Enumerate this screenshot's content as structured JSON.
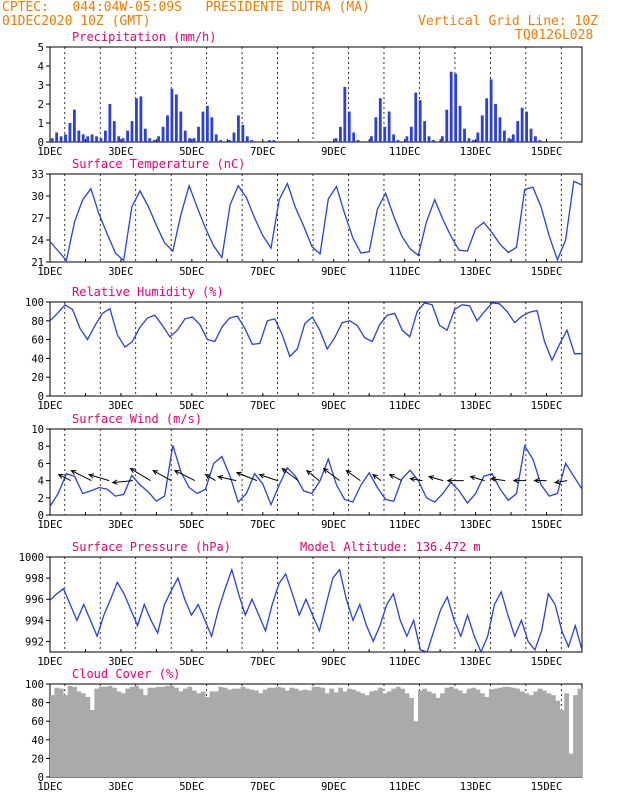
{
  "header": {
    "line1": "CPTEC:   044:04W-05:09S   PRESIDENTE DUTRA (MA)",
    "line2": "01DEC2020 10Z (GMT)",
    "vgrid": "Vertical Grid Line: 10Z",
    "code": "TQ0126L028"
  },
  "colors": {
    "header": "#f07c00",
    "title": "#e8007a",
    "line": "#2a3fe0",
    "cloud": "#aaaaaa",
    "wind_arrow": "#000000"
  },
  "x_axis": {
    "start": "2020-12-01T00:00Z",
    "end": "2020-12-16T00:00Z",
    "vgrid": "10Z",
    "labels": [
      "1DEC",
      "3DEC",
      "5DEC",
      "7DEC",
      "9DEC",
      "11DEC",
      "13DEC",
      "15DEC"
    ]
  },
  "chart_data": [
    {
      "type": "bar",
      "title": "Precipitation (mm/h)",
      "ylim": [
        0,
        5
      ],
      "yticks": [
        0,
        1,
        2,
        3,
        4,
        5
      ],
      "series": [
        {
          "values": [
            [
              0.2,
              0.5,
              0.3,
              0.4,
              1.0,
              1.7,
              0.6,
              0.4
            ],
            [
              0.3,
              0.4,
              0.3,
              0.2,
              0.6,
              2.0,
              1.1,
              0.3
            ],
            [
              0.2,
              0.6,
              1.1,
              2.3,
              2.4,
              0.7,
              0.2,
              0.1
            ],
            [
              0.3,
              0.8,
              1.4,
              2.8,
              2.5,
              1.6,
              0.6,
              0.2
            ],
            [
              0.2,
              0.8,
              1.6,
              1.9,
              1.3,
              0.4,
              0.1,
              0.0
            ],
            [
              0.1,
              0.5,
              1.4,
              0.9,
              0.3,
              0.1,
              0.0,
              0.0
            ],
            [
              0.0,
              0.1,
              0.1,
              0.0,
              0.0,
              0.0,
              0.0,
              0.0
            ],
            [
              0.0,
              0.0,
              0.0,
              0.0,
              0.0,
              0.0,
              0.0,
              0.0
            ],
            [
              0.2,
              0.8,
              2.9,
              1.6,
              0.5,
              0.1,
              0.0,
              0.0
            ],
            [
              0.3,
              1.3,
              2.3,
              0.8,
              1.6,
              0.4,
              0.1,
              0.0
            ],
            [
              0.3,
              0.8,
              2.6,
              2.2,
              1.1,
              0.3,
              0.1,
              0.0
            ],
            [
              0.3,
              1.7,
              3.7,
              3.6,
              1.9,
              0.7,
              0.2,
              0.1
            ],
            [
              0.5,
              1.4,
              2.3,
              3.3,
              2.0,
              1.3,
              0.6,
              0.2
            ],
            [
              0.4,
              1.1,
              1.8,
              1.6,
              0.7,
              0.3,
              0.1,
              0.0
            ],
            [
              0.0,
              0.0,
              0.0,
              0.0,
              0.0,
              0.0,
              0.0,
              0.0
            ]
          ]
        }
      ]
    },
    {
      "type": "line",
      "title": "Surface Temperature (nC)",
      "ylim": [
        21,
        33
      ],
      "yticks": [
        21,
        24,
        27,
        30,
        33
      ],
      "series": [
        {
          "values": [
            23.8,
            22.5,
            21.2,
            26.5,
            29.5,
            31.0,
            27.5,
            24.8,
            22.2,
            21.2,
            28.5,
            30.7,
            28.6,
            26.0,
            23.6,
            22.5,
            27.5,
            31.4,
            28.4,
            25.6,
            23.2,
            21.6,
            28.8,
            31.4,
            29.8,
            27.0,
            24.6,
            22.9,
            29.5,
            31.7,
            28.4,
            25.9,
            23.1,
            22.1,
            29.6,
            31.3,
            27.6,
            24.3,
            22.2,
            22.4,
            28.2,
            30.4,
            27.2,
            24.5,
            22.8,
            21.9,
            26.5,
            29.5,
            26.8,
            24.5,
            22.6,
            22.5,
            25.5,
            26.4,
            25.0,
            23.4,
            22.3,
            23.0,
            30.9,
            31.2,
            28.5,
            24.5,
            21.3,
            24.0,
            32.0,
            31.5
          ]
        }
      ]
    },
    {
      "type": "line",
      "title": "Relative Humidity (%)",
      "ylim": [
        0,
        100
      ],
      "yticks": [
        0,
        20,
        40,
        60,
        80,
        100
      ],
      "series": [
        {
          "values": [
            80,
            88,
            97,
            92,
            72,
            60,
            75,
            88,
            93,
            65,
            52,
            58,
            73,
            83,
            86,
            75,
            63,
            70,
            82,
            84,
            76,
            60,
            58,
            74,
            83,
            85,
            72,
            55,
            56,
            80,
            82,
            65,
            42,
            50,
            77,
            84,
            70,
            50,
            62,
            78,
            80,
            75,
            62,
            58,
            76,
            86,
            88,
            70,
            63,
            90,
            99,
            97,
            75,
            70,
            92,
            97,
            96,
            80,
            90,
            99,
            98,
            90,
            78,
            85,
            89,
            91,
            58,
            38,
            55,
            70,
            45,
            45
          ]
        }
      ]
    },
    {
      "type": "line",
      "title": "Surface Wind (m/s)",
      "ylim": [
        0,
        10
      ],
      "yticks": [
        0,
        2,
        4,
        6,
        8,
        10
      ],
      "series": [
        {
          "values": [
            1.0,
            2.5,
            4.8,
            4.5,
            2.5,
            2.8,
            3.2,
            3.0,
            2.2,
            2.4,
            4.6,
            3.5,
            2.7,
            1.6,
            2.2,
            8.1,
            5.0,
            3.2,
            2.5,
            3.0,
            6.0,
            6.8,
            4.5,
            1.5,
            2.5,
            4.8,
            3.6,
            1.2,
            3.5,
            5.5,
            4.5,
            2.8,
            2.5,
            4.0,
            6.5,
            3.5,
            1.8,
            1.5,
            3.5,
            4.9,
            3.2,
            1.8,
            1.6,
            4.2,
            5.2,
            4.0,
            2.0,
            1.5,
            2.5,
            3.8,
            2.8,
            1.4,
            2.5,
            4.5,
            4.8,
            3.0,
            1.7,
            2.5,
            8.0,
            6.5,
            3.5,
            2.2,
            2.5,
            6.0,
            4.5,
            3.0
          ]
        }
      ],
      "arrows": [
        {
          "x": "2020-12-01T14Z",
          "u": -0.6,
          "v": 0.3
        },
        {
          "x": "2020-12-02T04Z",
          "u": -1.0,
          "v": 0.5
        },
        {
          "x": "2020-12-02T16Z",
          "u": -1.0,
          "v": 0.3
        },
        {
          "x": "2020-12-03T08Z",
          "u": -1.0,
          "v": -0.1
        },
        {
          "x": "2020-12-03T20Z",
          "u": -1.0,
          "v": 0.6
        },
        {
          "x": "2020-12-04T10Z",
          "u": -0.9,
          "v": 0.5
        },
        {
          "x": "2020-12-05T02Z",
          "u": -1.0,
          "v": 0.5
        },
        {
          "x": "2020-12-05T16Z",
          "u": -0.5,
          "v": 0.3
        },
        {
          "x": "2020-12-06T06Z",
          "u": -0.9,
          "v": 0.2
        },
        {
          "x": "2020-12-06T20Z",
          "u": -1.0,
          "v": 0.4
        },
        {
          "x": "2020-12-07T10Z",
          "u": -0.9,
          "v": 0.3
        },
        {
          "x": "2020-12-08T00Z",
          "u": -0.8,
          "v": 0.6
        },
        {
          "x": "2020-12-08T14Z",
          "u": -0.6,
          "v": 0.5
        },
        {
          "x": "2020-12-09T04Z",
          "u": -0.8,
          "v": 0.6
        },
        {
          "x": "2020-12-09T18Z",
          "u": -0.7,
          "v": 0.5
        },
        {
          "x": "2020-12-10T08Z",
          "u": -0.4,
          "v": 0.3
        },
        {
          "x": "2020-12-10T22Z",
          "u": -0.6,
          "v": 0.3
        },
        {
          "x": "2020-12-11T12Z",
          "u": -0.6,
          "v": 0.1
        },
        {
          "x": "2020-12-12T02Z",
          "u": -0.7,
          "v": 0.2
        },
        {
          "x": "2020-12-12T16Z",
          "u": -0.8,
          "v": 0.0
        },
        {
          "x": "2020-12-13T06Z",
          "u": -0.7,
          "v": 0.2
        },
        {
          "x": "2020-12-13T20Z",
          "u": -0.7,
          "v": 0.1
        },
        {
          "x": "2020-12-14T10Z",
          "u": -0.6,
          "v": 0.0
        },
        {
          "x": "2020-12-15T00Z",
          "u": -0.6,
          "v": 0.0
        },
        {
          "x": "2020-12-15T14Z",
          "u": -0.6,
          "v": -0.1
        }
      ]
    },
    {
      "type": "line",
      "title": "Surface Pressure (hPa)",
      "annotation": "Model Altitude: 136.472 m",
      "ylim": [
        991,
        1000
      ],
      "yticks": [
        992,
        994,
        996,
        998,
        1000
      ],
      "series": [
        {
          "values": [
            995.9,
            996.5,
            997.0,
            995.5,
            994.0,
            995.5,
            994.0,
            992.5,
            994.5,
            996.0,
            997.6,
            996.5,
            995.0,
            993.5,
            995.5,
            994.0,
            992.8,
            995.5,
            996.8,
            998.0,
            996.0,
            994.5,
            995.5,
            994.0,
            992.5,
            995.0,
            997.0,
            998.8,
            996.5,
            994.5,
            996.0,
            994.5,
            993.0,
            995.5,
            997.5,
            998.4,
            996.5,
            994.5,
            996.0,
            994.5,
            993.0,
            995.5,
            998.0,
            998.8,
            996.0,
            994.0,
            995.5,
            993.5,
            992.0,
            993.5,
            995.5,
            996.5,
            994.0,
            992.5,
            994.0,
            991.2,
            990.8,
            993.0,
            995.0,
            996.2,
            994.0,
            992.5,
            994.5,
            992.5,
            991.0,
            992.5,
            995.5,
            996.7,
            994.5,
            992.5,
            994.0,
            992.0,
            991.2,
            993.0,
            996.5,
            995.5,
            993.0,
            991.5,
            993.5,
            991.2
          ]
        }
      ]
    },
    {
      "type": "bar",
      "title": "Cloud Cover (%)",
      "ylim": [
        0,
        100
      ],
      "yticks": [
        0,
        20,
        40,
        60,
        80,
        100
      ],
      "series": [
        {
          "values": [
            88,
            96,
            95,
            88,
            98,
            97,
            92,
            90,
            86,
            72,
            95,
            97,
            97,
            98,
            96,
            92,
            90,
            95,
            97,
            98,
            95,
            88,
            96,
            96,
            97,
            97,
            98,
            98,
            96,
            92,
            95,
            97,
            93,
            90,
            92,
            86,
            92,
            92,
            97,
            96,
            94,
            95,
            95,
            97,
            95,
            94,
            93,
            90,
            94,
            96,
            96,
            97,
            96,
            93,
            96,
            95,
            93,
            94,
            93,
            97,
            97,
            96,
            90,
            95,
            91,
            96,
            92,
            95,
            94,
            92,
            90,
            88,
            92,
            93,
            96,
            90,
            92,
            95,
            97,
            95,
            90,
            85,
            60,
            93,
            95,
            92,
            90,
            85,
            90,
            96,
            97,
            95,
            93,
            90,
            95,
            96,
            94,
            90,
            86,
            94,
            95,
            96,
            97,
            97,
            96,
            95,
            92,
            90,
            88,
            92,
            95,
            93,
            90,
            88,
            82,
            72,
            90,
            25,
            88,
            95
          ]
        }
      ]
    }
  ]
}
